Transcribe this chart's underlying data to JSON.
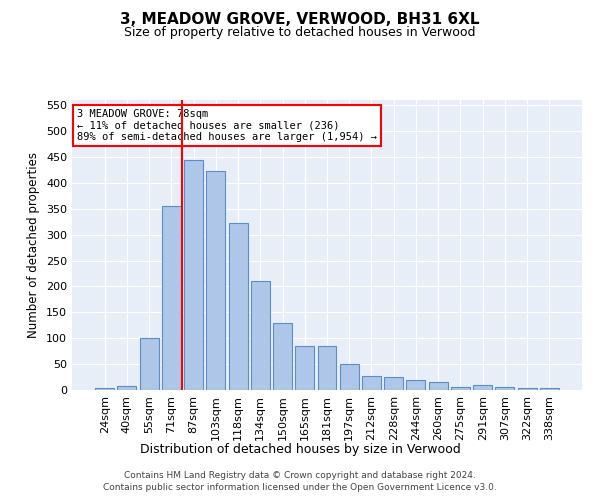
{
  "title": "3, MEADOW GROVE, VERWOOD, BH31 6XL",
  "subtitle": "Size of property relative to detached houses in Verwood",
  "xlabel": "Distribution of detached houses by size in Verwood",
  "ylabel": "Number of detached properties",
  "bins": [
    "24sqm",
    "40sqm",
    "55sqm",
    "71sqm",
    "87sqm",
    "103sqm",
    "118sqm",
    "134sqm",
    "150sqm",
    "165sqm",
    "181sqm",
    "197sqm",
    "212sqm",
    "228sqm",
    "244sqm",
    "260sqm",
    "275sqm",
    "291sqm",
    "307sqm",
    "322sqm",
    "338sqm"
  ],
  "values": [
    4,
    8,
    100,
    355,
    445,
    422,
    322,
    210,
    130,
    85,
    85,
    50,
    28,
    25,
    20,
    15,
    6,
    10,
    5,
    4,
    3
  ],
  "bar_color": "#aec6e8",
  "bar_edge_color": "#5b8dc8",
  "vline_x": 3.5,
  "vline_color": "red",
  "annotation_text": "3 MEADOW GROVE: 78sqm\n← 11% of detached houses are smaller (236)\n89% of semi-detached houses are larger (1,954) →",
  "annotation_box_color": "white",
  "annotation_box_edge": "red",
  "footnote1": "Contains HM Land Registry data © Crown copyright and database right 2024.",
  "footnote2": "Contains public sector information licensed under the Open Government Licence v3.0.",
  "ylim": [
    0,
    560
  ],
  "yticks": [
    0,
    50,
    100,
    150,
    200,
    250,
    300,
    350,
    400,
    450,
    500,
    550
  ],
  "bg_color": "#e8eef8",
  "grid_color": "white",
  "title_fontsize": 11,
  "subtitle_fontsize": 9
}
